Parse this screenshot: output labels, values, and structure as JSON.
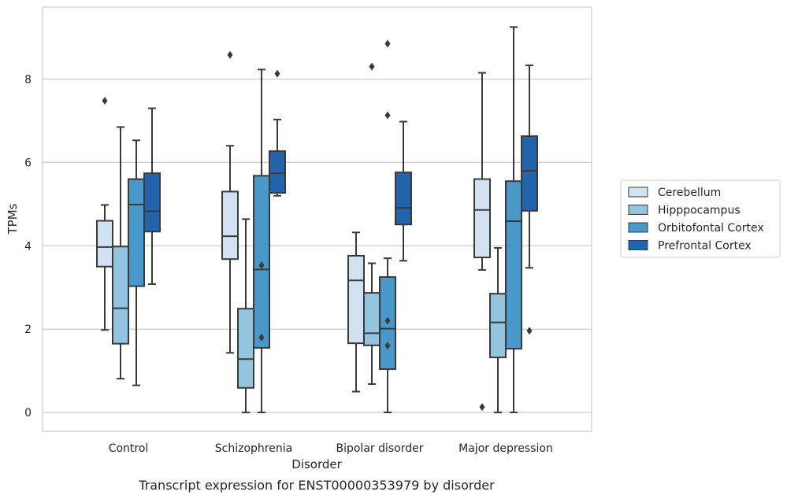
{
  "chart_data": {
    "type": "boxplot",
    "xlabel": "Disorder",
    "ylabel": "TPMs",
    "caption": "Transcript expression for ENST00000353979 by disorder",
    "ylim": [
      -0.45,
      9.7
    ],
    "yticks": [
      0,
      2,
      4,
      6,
      8
    ],
    "grid": "horizontal",
    "legend_position": "right",
    "categories": [
      "Control",
      "Schizophrenia",
      "Bipolar disorder",
      "Major depression"
    ],
    "series": [
      {
        "name": "Cerebellum",
        "color": "#d0e1f2",
        "boxes": [
          {
            "whislo": 1.98,
            "q1": 3.5,
            "med": 3.97,
            "q3": 4.6,
            "whishi": 4.98,
            "fliers": [
              7.48
            ]
          },
          {
            "whislo": 1.43,
            "q1": 3.68,
            "med": 4.23,
            "q3": 5.3,
            "whishi": 6.4,
            "fliers": [
              8.58
            ]
          },
          {
            "whislo": 0.5,
            "q1": 1.66,
            "med": 3.17,
            "q3": 3.76,
            "whishi": 4.32,
            "fliers": []
          },
          {
            "whislo": 3.42,
            "q1": 3.72,
            "med": 4.86,
            "q3": 5.6,
            "whishi": 8.15,
            "fliers": [
              0.13
            ]
          }
        ]
      },
      {
        "name": "Hipppocampus",
        "color": "#94c4df",
        "boxes": [
          {
            "whislo": 0.81,
            "q1": 1.65,
            "med": 2.5,
            "q3": 3.98,
            "whishi": 6.85,
            "fliers": []
          },
          {
            "whislo": 0.0,
            "q1": 0.59,
            "med": 1.28,
            "q3": 2.49,
            "whishi": 4.64,
            "fliers": []
          },
          {
            "whislo": 0.68,
            "q1": 1.61,
            "med": 1.9,
            "q3": 2.87,
            "whishi": 3.58,
            "fliers": [
              8.3
            ]
          },
          {
            "whislo": 0.0,
            "q1": 1.32,
            "med": 2.16,
            "q3": 2.85,
            "whishi": 3.95,
            "fliers": []
          }
        ]
      },
      {
        "name": "Orbitofontal Cortex",
        "color": "#4a98c9",
        "boxes": [
          {
            "whislo": 0.65,
            "q1": 3.03,
            "med": 4.99,
            "q3": 5.6,
            "whishi": 6.53,
            "fliers": []
          },
          {
            "whislo": 0.0,
            "q1": 1.55,
            "med": 3.43,
            "q3": 5.68,
            "whishi": 8.23,
            "fliers": [
              3.53,
              1.8
            ]
          },
          {
            "whislo": 0.0,
            "q1": 1.04,
            "med": 2.01,
            "q3": 3.25,
            "whishi": 3.7,
            "fliers": [
              2.2,
              1.6,
              7.13,
              8.85
            ]
          },
          {
            "whislo": 0.0,
            "q1": 1.53,
            "med": 4.59,
            "q3": 5.55,
            "whishi": 9.25,
            "fliers": []
          }
        ]
      },
      {
        "name": "Prefrontal Cortex",
        "color": "#2363a9",
        "boxes": [
          {
            "whislo": 3.08,
            "q1": 4.34,
            "med": 4.83,
            "q3": 5.74,
            "whishi": 7.3,
            "fliers": []
          },
          {
            "whislo": 5.2,
            "q1": 5.27,
            "med": 5.74,
            "q3": 6.27,
            "whishi": 7.03,
            "fliers": [
              8.13
            ]
          },
          {
            "whislo": 3.64,
            "q1": 4.51,
            "med": 4.91,
            "q3": 5.76,
            "whishi": 6.98,
            "fliers": []
          },
          {
            "whislo": 3.47,
            "q1": 4.84,
            "med": 5.8,
            "q3": 6.63,
            "whishi": 8.33,
            "fliers": [
              1.96
            ]
          }
        ]
      }
    ]
  }
}
